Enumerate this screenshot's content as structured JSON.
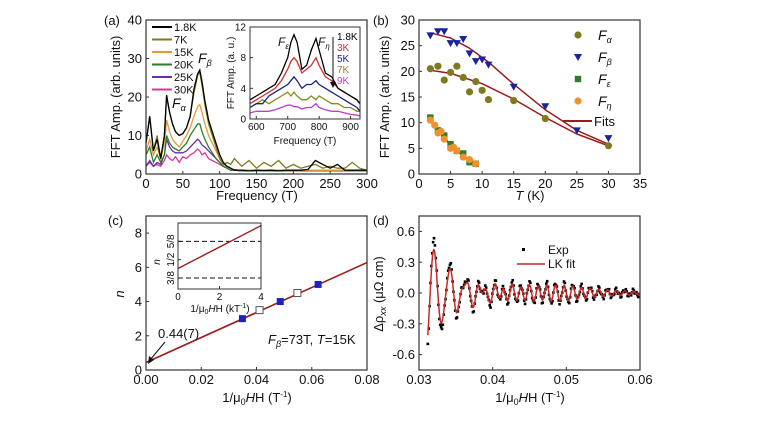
{
  "figure_title": "",
  "chart_data": [
    {
      "panel": "(a)",
      "type": "line",
      "xlabel": "Frequency (T)",
      "ylabel": "FFT Amp. (arb. units)",
      "xlim": [
        0,
        300
      ],
      "ylim": [
        0,
        40
      ],
      "xticks": [
        0,
        50,
        100,
        150,
        200,
        250,
        300
      ],
      "yticks": [
        0,
        10,
        20,
        30,
        40
      ],
      "legend_placement": "top-left",
      "annotations": [
        {
          "text": "F",
          "sub": "α",
          "x": 40,
          "y": 17.5
        },
        {
          "text": "F",
          "sub": "β",
          "x": 80,
          "y": 29
        }
      ],
      "x": [
        0,
        5,
        10,
        15,
        20,
        25,
        28,
        32,
        36,
        40,
        45,
        50,
        55,
        60,
        65,
        70,
        73,
        76,
        80,
        85,
        90,
        95,
        100,
        105,
        110,
        115,
        120,
        130,
        140,
        150,
        160,
        170,
        180,
        190,
        200,
        210,
        220,
        230,
        240,
        250,
        260,
        270,
        280,
        290,
        300
      ],
      "series": [
        {
          "name": "1.8K",
          "color": "#000000",
          "values": [
            8,
            15,
            6,
            9,
            4,
            10,
            20.5,
            16,
            13,
            11,
            10,
            10.5,
            12,
            15,
            22,
            26,
            27,
            24,
            19,
            14,
            11,
            8,
            5,
            3,
            2,
            1.5,
            1,
            1,
            0.8,
            1,
            0.9,
            1,
            0.8,
            1,
            1,
            1,
            1.2,
            3.5,
            2.5,
            1.5,
            2.5,
            1,
            1,
            1,
            1
          ]
        },
        {
          "name": "7K",
          "color": "#7f7a1f",
          "values": [
            8,
            15,
            6,
            10,
            4,
            10,
            20,
            16,
            13,
            11,
            10,
            10.5,
            12,
            15,
            21,
            25.5,
            26.5,
            23,
            18,
            13,
            10,
            7,
            4,
            2.5,
            3,
            2.5,
            4,
            2,
            3.5,
            1.5,
            3,
            2,
            3.5,
            1.5,
            2.5,
            1.5,
            2,
            2.5,
            1.5,
            2,
            1.5,
            1.5,
            3,
            1.5,
            1
          ]
        },
        {
          "name": "15K",
          "color": "#e39a3c",
          "values": [
            6,
            9,
            5,
            7,
            4,
            8,
            14,
            11,
            9,
            8,
            7,
            8.5,
            10,
            12,
            15,
            17.5,
            18,
            16,
            13,
            10,
            8,
            6,
            4,
            2.5,
            2,
            1.5,
            1,
            1,
            1,
            1,
            1,
            1,
            1,
            1,
            1,
            1,
            1,
            1,
            1,
            1,
            1,
            1,
            1,
            1,
            1
          ]
        },
        {
          "name": "20K",
          "color": "#2e7d2e",
          "values": [
            5,
            7,
            3,
            5,
            3,
            5,
            10,
            8,
            7,
            6.5,
            6,
            7,
            8,
            10,
            11.5,
            13,
            13,
            11,
            9,
            7,
            5.5,
            4,
            3,
            2,
            1.5,
            1,
            1,
            0.8,
            0.8,
            0.8,
            0.8,
            0.8,
            0.8,
            0.8,
            0.8,
            0.8,
            0.8,
            0.8,
            0.8,
            0.8,
            0.8,
            0.8,
            0.8,
            0.8,
            0.8
          ]
        },
        {
          "name": "25K",
          "color": "#6a2ca8",
          "values": [
            2,
            3.5,
            2,
            3,
            2.5,
            5,
            9,
            7,
            6,
            5.5,
            5.5,
            5.5,
            6,
            7,
            8,
            9,
            8.5,
            7.5,
            7,
            6,
            5,
            4,
            3,
            2,
            1.5,
            1,
            1,
            0.8,
            0.8,
            0.8,
            0.8,
            0.8,
            0.8,
            0.8,
            0.8,
            0.8,
            0.8,
            0.8,
            0.8,
            0.8,
            0.8,
            0.8,
            0.8,
            0.8,
            0.8
          ]
        },
        {
          "name": "30K",
          "color": "#d63a9a",
          "values": [
            2,
            3,
            2,
            2.5,
            2,
            3.5,
            5,
            4,
            3.5,
            4.5,
            3,
            4.5,
            4,
            5,
            5.5,
            6.5,
            6,
            5,
            5.5,
            4,
            3.5,
            3,
            2.5,
            2,
            1.5,
            1,
            1.2,
            0.8,
            1,
            0.8,
            1,
            0.8,
            1,
            0.8,
            1,
            0.8,
            1,
            0.8,
            1,
            0.8,
            1,
            0.8,
            1,
            0.8,
            1
          ]
        }
      ],
      "inset": {
        "type": "line",
        "xlabel": "Frequency (T)",
        "ylabel": "FFT Amp. (a. u.)",
        "xlim": [
          580,
          930
        ],
        "ylim": [
          0,
          12
        ],
        "xticks": [
          600,
          700,
          800,
          900
        ],
        "yticks": [
          0,
          4,
          8,
          12
        ],
        "annotations": [
          {
            "text": "F",
            "sub": "ε",
            "x": 685,
            "y": 10.5
          },
          {
            "text": "F",
            "sub": "η",
            "x": 810,
            "y": 10.5
          }
        ],
        "legend_placement": "top-right",
        "legend_arrow": "down",
        "x": [
          580,
          600,
          620,
          640,
          660,
          680,
          700,
          710,
          720,
          730,
          745,
          760,
          775,
          790,
          800,
          820,
          840,
          860,
          880,
          900,
          920,
          930
        ],
        "series": [
          {
            "name": "1.8K",
            "color": "#000000",
            "values": [
              2.5,
              3,
              3.5,
              4,
              4.5,
              6,
              8,
              10,
              11,
              10,
              6.5,
              7,
              9,
              10.5,
              9,
              6,
              5.5,
              4,
              3.5,
              3,
              2.5,
              2
            ]
          },
          {
            "name": "3K",
            "color": "#d32f2f",
            "values": [
              2,
              2.5,
              3,
              3.5,
              4,
              5,
              6.5,
              7.5,
              8,
              7.5,
              6,
              6.5,
              7,
              8,
              7,
              5.5,
              5,
              4,
              3.5,
              3,
              2.5,
              2
            ]
          },
          {
            "name": "5K",
            "color": "#1a237e",
            "values": [
              1.5,
              2,
              2,
              3,
              3.5,
              4,
              4.5,
              5,
              5.5,
              5,
              4,
              4.5,
              4.5,
              5,
              4.5,
              4,
              3.5,
              3,
              2.5,
              2,
              1.5,
              1
            ]
          },
          {
            "name": "7K",
            "color": "#8a8a1f",
            "values": [
              1.5,
              2,
              2.5,
              2,
              2.5,
              3,
              3.5,
              3,
              3.5,
              3,
              2.5,
              2.5,
              3,
              2.5,
              3,
              2.5,
              2,
              2,
              1.5,
              1.5,
              1,
              1
            ]
          },
          {
            "name": "9K",
            "color": "#c03cc8",
            "values": [
              0.8,
              1,
              1,
              1,
              1.2,
              1.5,
              1.8,
              1.8,
              1.6,
              1.6,
              1.3,
              1.5,
              1.5,
              2,
              1.5,
              1.2,
              1,
              1,
              0.8,
              0.6,
              0.5,
              0.4
            ]
          }
        ]
      }
    },
    {
      "panel": "(b)",
      "type": "scatter",
      "xlabel": "T (K)",
      "ylabel": "FFT Amp. (arb. units)",
      "xlim": [
        0,
        35
      ],
      "ylim": [
        0,
        30
      ],
      "xticks": [
        0,
        5,
        10,
        15,
        20,
        25,
        30,
        35
      ],
      "yticks": [
        0,
        5,
        10,
        15,
        20,
        25,
        30
      ],
      "legend_placement": "top-right",
      "series": [
        {
          "name": "Fα",
          "label_main": "F",
          "label_sub": "α",
          "marker": "circle",
          "color": "#7f7a1f",
          "x": [
            1.8,
            3,
            4,
            5,
            6,
            7,
            8,
            9,
            10,
            11,
            15,
            20,
            30
          ],
          "y": [
            20.5,
            21,
            18.3,
            19.8,
            21,
            18.8,
            16,
            18,
            16.3,
            14.5,
            14.3,
            10.8,
            5.5
          ]
        },
        {
          "name": "Fβ",
          "label_main": "F",
          "label_sub": "β",
          "marker": "triangle-down",
          "color": "#1a22a0",
          "x": [
            1.8,
            3,
            4,
            5,
            6,
            7,
            8,
            9,
            10,
            11,
            15,
            20,
            25,
            30
          ],
          "y": [
            27,
            27.8,
            27.8,
            25.5,
            25.5,
            26.3,
            23.5,
            22,
            22.3,
            21.3,
            17,
            13.2,
            8.5,
            7
          ]
        },
        {
          "name": "Fε",
          "label_main": "F",
          "label_sub": "ε",
          "marker": "square",
          "color": "#2e7d2e",
          "x": [
            1.8,
            3,
            4,
            5,
            6,
            7,
            8,
            9
          ],
          "y": [
            11,
            8.5,
            7.5,
            5.8,
            4.5,
            4,
            2.3,
            2
          ]
        },
        {
          "name": "Fη",
          "label_main": "F",
          "label_sub": "η",
          "marker": "circle",
          "color": "#f0922b",
          "x": [
            1.8,
            2.5,
            3,
            3.5,
            4,
            5,
            5.5,
            6,
            7,
            8,
            9
          ],
          "y": [
            10.5,
            9.5,
            8,
            8.3,
            6.8,
            5,
            5.2,
            4.5,
            3.3,
            2.8,
            2
          ]
        }
      ],
      "fits": [
        {
          "name": "Fits",
          "color": "#9b1c1c",
          "x": [
            1.8,
            5,
            8,
            11,
            15,
            20,
            25,
            30
          ],
          "y": [
            27.5,
            26.5,
            24.5,
            21.8,
            17.5,
            12.5,
            8.5,
            5.8
          ]
        },
        {
          "color": "#9b1c1c",
          "x": [
            1.8,
            5,
            10,
            15,
            20,
            25,
            30
          ],
          "y": [
            20.2,
            19.6,
            17.6,
            14.6,
            11,
            7.8,
            5.5
          ]
        },
        {
          "color": "#d32f2f",
          "x": [
            1.8,
            3,
            5,
            7,
            9
          ],
          "y": [
            10.5,
            8.6,
            5.6,
            3.6,
            1.7
          ]
        }
      ],
      "legend": [
        "Fα",
        "Fβ",
        "Fε",
        "Fη",
        "Fits"
      ]
    },
    {
      "panel": "(c)",
      "type": "scatter",
      "xlabel": "1/μ0H (T⁻¹)",
      "ylabel": "n",
      "xlim": [
        0,
        0.08
      ],
      "ylim": [
        0,
        9
      ],
      "xticks": [
        0.0,
        0.02,
        0.04,
        0.06,
        0.08
      ],
      "yticks": [
        0,
        2,
        4,
        6,
        8
      ],
      "annotations": [
        {
          "text": "0.44(7)",
          "arrow_to": [
            0,
            0.44
          ]
        },
        {
          "text": "Fβ=73T, T=15K"
        }
      ],
      "series": [
        {
          "name": "maxima",
          "marker": "square-filled",
          "color": "#1a22c8",
          "x": [
            0.0349,
            0.0486,
            0.0623
          ],
          "y": [
            3,
            4,
            5
          ]
        },
        {
          "name": "minima",
          "marker": "square-open",
          "color": "#555555",
          "x": [
            0.0411,
            0.0548
          ],
          "y": [
            3.5,
            4.5
          ]
        }
      ],
      "fit": {
        "color": "#9b1c1c",
        "intercept": 0.44,
        "slope": 73
      },
      "inset": {
        "xlabel": "1/μ0H (kT⁻¹)",
        "ylabel": "n",
        "xlim": [
          0,
          4
        ],
        "ylim": [
          0.3,
          0.75
        ],
        "xticks": [
          0,
          2,
          4
        ],
        "yticks": [
          0.375,
          0.5,
          0.625
        ],
        "ytick_labels": [
          "3/8",
          "1/2",
          "5/8"
        ],
        "dashed_lines": [
          0.375,
          0.625
        ],
        "fit": {
          "intercept": 0.44,
          "slope": 0.073
        }
      }
    },
    {
      "panel": "(d)",
      "type": "line",
      "xlabel": "1/μ0H (T⁻¹)",
      "ylabel": "Δρxx (μΩ cm)",
      "xlim": [
        0.03,
        0.06
      ],
      "ylim": [
        -0.75,
        0.75
      ],
      "xticks": [
        0.03,
        0.04,
        0.05,
        0.06
      ],
      "yticks": [
        -0.6,
        -0.3,
        0.0,
        0.3,
        0.6
      ],
      "legend_placement": "top-right",
      "legend": [
        "Exp",
        "LK fit"
      ],
      "series": [
        {
          "name": "Exp",
          "marker": "dot",
          "color": "#000000",
          "model": {
            "f_alpha_T": 73,
            "f_beta_T": 470,
            "decay_start": 0.031,
            "amp_beta": 0.62,
            "amp_alpha": 0.06
          }
        },
        {
          "name": "LK fit",
          "color": "#c62828",
          "model": {
            "f_alpha_T": 73,
            "f_beta_T": 470,
            "decay_start": 0.031,
            "amp_beta": 0.55,
            "amp_alpha": 0.05
          }
        }
      ]
    }
  ],
  "panels": {
    "a": {
      "label": "(a)",
      "xlabel": "Frequency (T)",
      "ylabel": "FFT Amp. (arb. units)",
      "legend": [
        "1.8K",
        "7K",
        "15K",
        "20K",
        "25K",
        "30K"
      ],
      "inset_xlabel": "Frequency (T)",
      "inset_ylabel": "FFT Amp. (a. u.)",
      "inset_legend": [
        "1.8K",
        "3K",
        "5K",
        "7K",
        "9K"
      ],
      "ann_alpha": "F",
      "ann_alpha_sub": "α",
      "ann_beta": "F",
      "ann_beta_sub": "β",
      "ann_eps": "F",
      "ann_eps_sub": "ε",
      "ann_eta": "F",
      "ann_eta_sub": "η"
    },
    "b": {
      "label": "(b)",
      "xlabel_main": "T",
      "xlabel_rest": " (K)",
      "ylabel": "FFT Amp. (arb. units)",
      "legend_fits": "Fits"
    },
    "c": {
      "label": "(c)",
      "xlabel": "1/μ",
      "xlabel_sub": "0",
      "xlabel_rest": "H (T",
      "xlabel_sup": "-1",
      "xlabel_end": ")",
      "ylabel": "n",
      "ann_intercept": "0.44(7)",
      "ann_params_F": "F",
      "ann_params_sub": "β",
      "ann_params_rest": "=73T, ",
      "ann_params_T": "T",
      "ann_params_end": "=15K",
      "inset_xlabel": "1/μ",
      "inset_xlabel_sub": "0",
      "inset_xlabel_rest": "H (kT",
      "inset_xlabel_sup": "-1",
      "inset_xlabel_end": ")",
      "inset_ylabel": "n"
    },
    "d": {
      "label": "(d)",
      "ylabel_main": "Δρ",
      "ylabel_sub": "xx",
      "ylabel_rest": " (μΩ cm)",
      "xlabel": "1/μ",
      "xlabel_sub": "0",
      "xlabel_rest": "H (T",
      "xlabel_sup": "-1",
      "xlabel_end": ")",
      "legend_exp": "Exp",
      "legend_fit": "LK fit"
    }
  }
}
